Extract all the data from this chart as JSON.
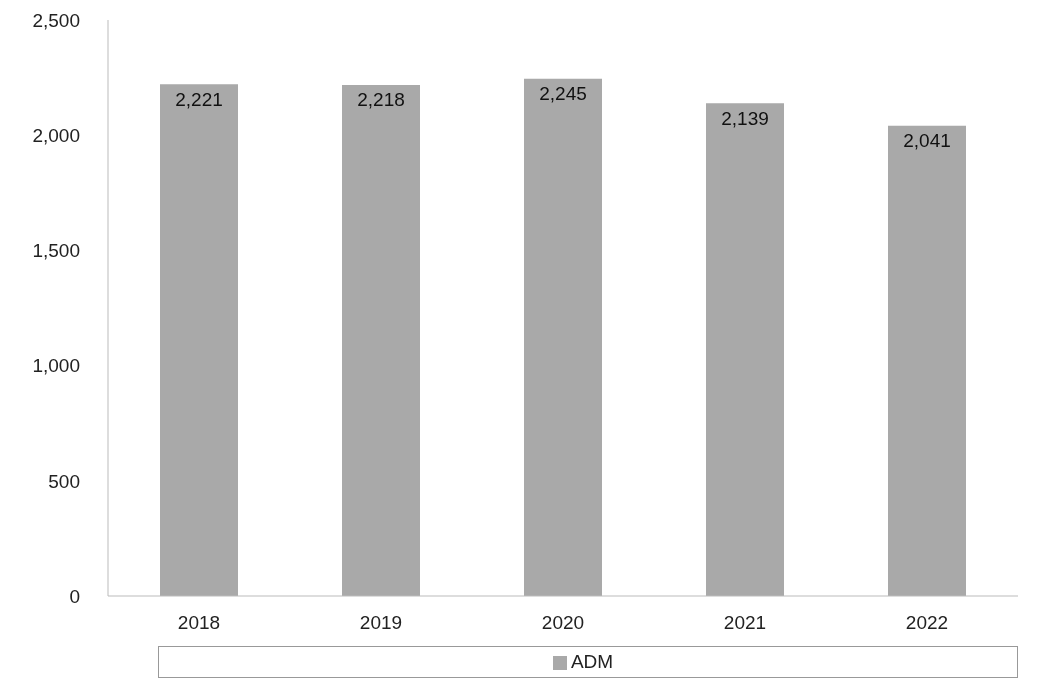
{
  "chart_data": {
    "type": "bar",
    "categories": [
      "2018",
      "2019",
      "2020",
      "2021",
      "2022"
    ],
    "series": [
      {
        "name": "ADM",
        "color": "#a9a9a9",
        "values": [
          2221,
          2218,
          2245,
          2139,
          2041
        ],
        "value_labels": [
          "2,221",
          "2,218",
          "2,245",
          "2,139",
          "2,041"
        ]
      }
    ],
    "ylim": [
      0,
      2500
    ],
    "yticks": [
      {
        "value": 0,
        "label": "0"
      },
      {
        "value": 500,
        "label": "500"
      },
      {
        "value": 1000,
        "label": "1,000"
      },
      {
        "value": 1500,
        "label": "1,500"
      },
      {
        "value": 2000,
        "label": "2,000"
      },
      {
        "value": 2500,
        "label": "2,500"
      }
    ],
    "legend": "bottom",
    "grid": false
  }
}
